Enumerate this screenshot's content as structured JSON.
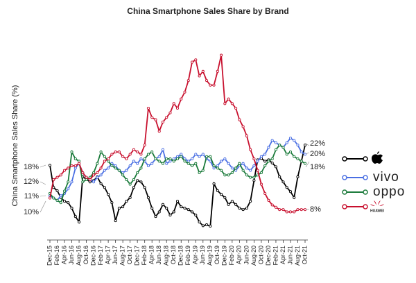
{
  "chart_data": {
    "type": "line",
    "title": "China Smartphone Sales Share by Brand",
    "ylabel": "China Smartphone Sales Share (%)",
    "ylim": [
      2,
      44
    ],
    "categories": [
      "Dec-15",
      null,
      "Feb-16",
      null,
      "Apr-16",
      null,
      "Jun-16",
      null,
      "Aug-16",
      null,
      "Oct-16",
      null,
      "Dec-16",
      null,
      "Feb-17",
      null,
      "Apr-17",
      null,
      "Jun-17",
      null,
      "Aug-17",
      null,
      "Oct-17",
      null,
      "Dec-17",
      null,
      "Feb-18",
      null,
      "Apr-18",
      null,
      "Jun-18",
      null,
      "Aug-18",
      null,
      "Oct-18",
      null,
      "Dec-18",
      null,
      "Feb-19",
      null,
      "Apr-19",
      null,
      "Jun-19",
      null,
      "Aug-19",
      null,
      "Oct-19",
      null,
      "Dec-19",
      null,
      "Feb-20",
      null,
      "Apr-20",
      null,
      "Jun-20",
      null,
      "Aug-20",
      null,
      "Oct-20",
      null,
      "Dec-20",
      null,
      "Feb-21",
      null,
      "Apr-21",
      null,
      "Jun-21",
      null,
      "Aug-21",
      null,
      "Oct-21"
    ],
    "series": [
      {
        "color": "#000000",
        "values": [
          17.6,
          12.8,
          12.1,
          10.6,
          9.8,
          9.5,
          8.3,
          6.5,
          5.3,
          15.1,
          14.6,
          14.0,
          14.3,
          15.1,
          13.6,
          12.8,
          11.3,
          9.5,
          5.6,
          8.3,
          8.6,
          9.8,
          10.6,
          12.8,
          14.3,
          14.0,
          12.8,
          10.6,
          8.3,
          6.5,
          7.5,
          9.1,
          8.3,
          6.8,
          7.5,
          9.8,
          8.6,
          8.3,
          8.0,
          7.5,
          6.8,
          5.3,
          4.5,
          4.7,
          4.4,
          13.6,
          12.1,
          11.3,
          10.6,
          9.1,
          9.8,
          9.1,
          8.3,
          8.0,
          8.3,
          9.8,
          14.3,
          18.8,
          19.1,
          18.5,
          18.8,
          18.1,
          17.3,
          15.1,
          14.0,
          12.8,
          11.9,
          10.6,
          15.1,
          18.5,
          22.0
        ]
      },
      {
        "name": "vivo",
        "color": "#4a6fe3",
        "values": [
          11,
          10.5,
          10,
          11,
          11.5,
          12.5,
          14,
          17,
          18,
          16,
          15,
          14.5,
          14,
          15,
          15.5,
          16.5,
          17,
          18,
          17.5,
          16.5,
          16,
          16.5,
          17.5,
          18.5,
          18,
          19,
          18.5,
          17.5,
          18,
          19,
          19.5,
          21,
          18,
          18.5,
          19,
          19.5,
          20,
          19,
          18.5,
          19,
          20,
          19.5,
          20,
          19,
          18.5,
          17,
          17.5,
          18.5,
          19,
          18,
          17,
          16.5,
          17.5,
          18,
          17,
          16.5,
          17.5,
          18.5,
          19.5,
          20,
          21.5,
          23,
          22.5,
          22,
          21.5,
          22.5,
          23.5,
          23,
          22,
          20.5,
          20
        ]
      },
      {
        "name": "oppo",
        "color": "#1a7a3a",
        "values": [
          11.5,
          10.5,
          10,
          9.5,
          12,
          14,
          20.5,
          19,
          18.5,
          14,
          14.5,
          15,
          16,
          18,
          20.5,
          19.5,
          18.5,
          17.5,
          17,
          16.5,
          15.5,
          14.5,
          13.5,
          14.5,
          16,
          17,
          19,
          20,
          20.5,
          19,
          18.5,
          18,
          19,
          19,
          18.5,
          19,
          19.5,
          18.5,
          18,
          17.5,
          18,
          16,
          16.5,
          19.5,
          19.5,
          17.5,
          17,
          16.5,
          15.5,
          15.5,
          16,
          17,
          18,
          16.5,
          15.5,
          15,
          15,
          15.5,
          16,
          17.5,
          18.5,
          19,
          21,
          22,
          21.5,
          20,
          20.5,
          19.5,
          19,
          18.5,
          18
        ]
      },
      {
        "name": "HUAWEI",
        "color": "#c8102e",
        "values": [
          10.5,
          14.5,
          15,
          15.5,
          16.5,
          17,
          17.5,
          17.5,
          18,
          16,
          15,
          14.5,
          15.5,
          16,
          17,
          18.5,
          19,
          20,
          20.5,
          20.5,
          19.5,
          19,
          20,
          21,
          20.5,
          20,
          22,
          30,
          28,
          27.5,
          25,
          27,
          28,
          29,
          31,
          30,
          32,
          33.5,
          36,
          40,
          40.5,
          37,
          38,
          36,
          35,
          35,
          38,
          41.5,
          31,
          32,
          31,
          30,
          27.5,
          26,
          24,
          21,
          19,
          16.5,
          13.5,
          11.5,
          10,
          9,
          8.5,
          8,
          8,
          7.5,
          7.5,
          7.5,
          8,
          8,
          8
        ]
      }
    ],
    "annotations": [
      "18%",
      "12%",
      "11%",
      "10%",
      "22%",
      "20%",
      "18%",
      "8%"
    ]
  }
}
